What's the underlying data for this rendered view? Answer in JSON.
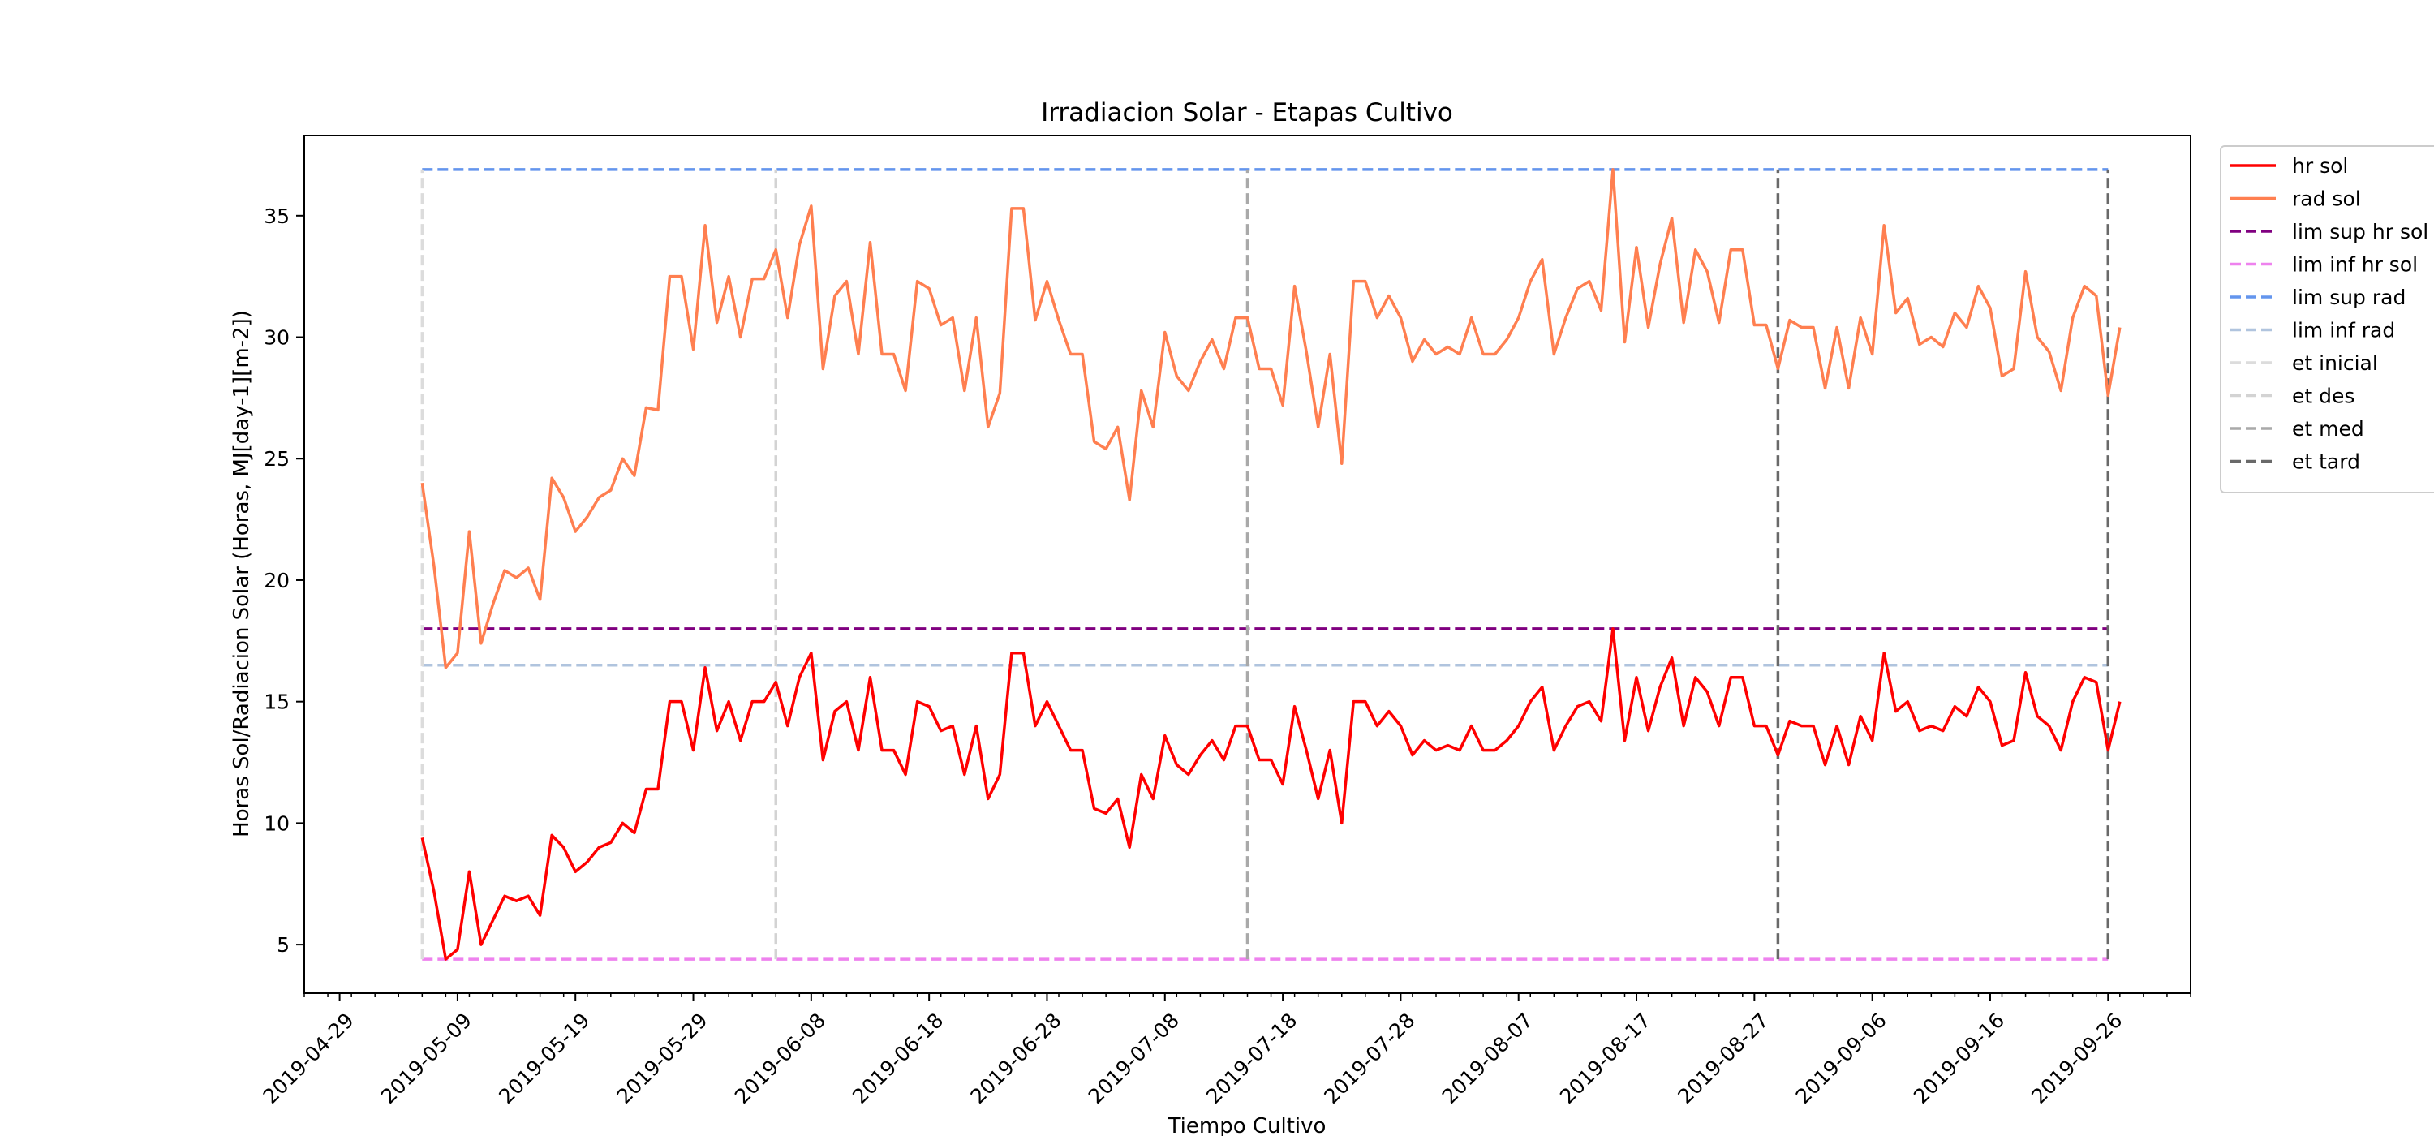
{
  "chart_data": {
    "type": "line",
    "title": "Irradiacion Solar - Etapas Cultivo",
    "xlabel": "Tiempo Cultivo",
    "ylabel": "Horas Sol/Radiacion Solar (Horas, MJ[day-1][m-2])",
    "x_axis_type": "date",
    "xlim": [
      "2019-04-26",
      "2019-10-03"
    ],
    "ylim": [
      3,
      38.3
    ],
    "x_ticks": [
      "2019-04-29",
      "2019-05-09",
      "2019-05-19",
      "2019-05-29",
      "2019-06-08",
      "2019-06-18",
      "2019-06-28",
      "2019-07-08",
      "2019-07-18",
      "2019-07-28",
      "2019-08-07",
      "2019-08-17",
      "2019-08-27",
      "2019-09-06",
      "2019-09-16",
      "2019-09-26"
    ],
    "y_ticks": [
      5,
      10,
      15,
      20,
      25,
      30,
      35
    ],
    "grid": false,
    "legend_position": "outside-right",
    "x_start": "2019-05-06",
    "series": [
      {
        "name": "hr sol",
        "color": "#ff0000",
        "values": [
          9.4,
          7.2,
          4.4,
          4.8,
          8.0,
          5.0,
          6.0,
          7.0,
          6.8,
          7.0,
          6.2,
          9.5,
          9.0,
          8.0,
          8.4,
          9.0,
          9.2,
          10.0,
          9.6,
          11.4,
          11.4,
          15.0,
          15.0,
          13.0,
          16.4,
          13.8,
          15.0,
          13.4,
          15.0,
          15.0,
          15.8,
          14.0,
          16.0,
          17.0,
          12.6,
          14.6,
          15.0,
          13.0,
          16.0,
          13.0,
          13.0,
          12.0,
          15.0,
          14.8,
          13.8,
          14.0,
          12.0,
          14.0,
          11.0,
          12.0,
          17.0,
          17.0,
          14.0,
          15.0,
          14.0,
          13.0,
          13.0,
          10.6,
          10.4,
          11.0,
          9.0,
          12.0,
          11.0,
          13.6,
          12.4,
          12.0,
          12.8,
          13.4,
          12.6,
          14.0,
          14.0,
          12.6,
          12.6,
          11.6,
          14.8,
          13.0,
          11.0,
          13.0,
          10.0,
          15.0,
          15.0,
          14.0,
          14.6,
          14.0,
          12.8,
          13.4,
          13.0,
          13.2,
          13.0,
          14.0,
          13.0,
          13.0,
          13.4,
          14.0,
          15.0,
          15.6,
          13.0,
          14.0,
          14.8,
          15.0,
          14.2,
          18.0,
          13.4,
          16.0,
          13.8,
          15.6,
          16.8,
          14.0,
          16.0,
          15.4,
          14.0,
          16.0,
          16.0,
          14.0,
          14.0,
          12.8,
          14.2,
          14.0,
          14.0,
          12.4,
          14.0,
          12.4,
          14.4,
          13.4,
          17.0,
          14.6,
          15.0,
          13.8,
          14.0,
          13.8,
          14.8,
          14.4,
          15.6,
          15.0,
          13.2,
          13.4,
          16.2,
          14.4,
          14.0,
          13.0,
          15.0,
          16.0,
          15.8,
          13.0,
          15.0
        ]
      },
      {
        "name": "rad sol",
        "color": "#ff7f50",
        "values": [
          24.0,
          20.6,
          16.4,
          17.0,
          22.0,
          17.4,
          19.0,
          20.4,
          20.1,
          20.5,
          19.2,
          24.2,
          23.4,
          22.0,
          22.6,
          23.4,
          23.7,
          25.0,
          24.3,
          27.1,
          27.0,
          32.5,
          32.5,
          29.5,
          34.6,
          30.6,
          32.5,
          30.0,
          32.4,
          32.4,
          33.6,
          30.8,
          33.8,
          35.4,
          28.7,
          31.7,
          32.3,
          29.3,
          33.9,
          29.3,
          29.3,
          27.8,
          32.3,
          32.0,
          30.5,
          30.8,
          27.8,
          30.8,
          26.3,
          27.7,
          35.3,
          35.3,
          30.7,
          32.3,
          30.7,
          29.3,
          29.3,
          25.7,
          25.4,
          26.3,
          23.3,
          27.8,
          26.3,
          30.2,
          28.4,
          27.8,
          29.0,
          29.9,
          28.7,
          30.8,
          30.8,
          28.7,
          28.7,
          27.2,
          32.1,
          29.4,
          26.3,
          29.3,
          24.8,
          32.3,
          32.3,
          30.8,
          31.7,
          30.8,
          29.0,
          29.9,
          29.3,
          29.6,
          29.3,
          30.8,
          29.3,
          29.3,
          29.9,
          30.8,
          32.3,
          33.2,
          29.3,
          30.8,
          32.0,
          32.3,
          31.1,
          36.9,
          29.8,
          33.7,
          30.4,
          33.0,
          34.9,
          30.6,
          33.6,
          32.7,
          30.6,
          33.6,
          33.6,
          30.5,
          30.5,
          28.7,
          30.7,
          30.4,
          30.4,
          27.9,
          30.4,
          27.9,
          30.8,
          29.3,
          34.6,
          31.0,
          31.6,
          29.7,
          30.0,
          29.6,
          31.0,
          30.4,
          32.1,
          31.2,
          28.4,
          28.7,
          32.7,
          30.0,
          29.4,
          27.8,
          30.8,
          32.1,
          31.7,
          27.6,
          30.4
        ]
      }
    ],
    "reference_lines": [
      {
        "name": "lim sup hr sol",
        "color": "#800080",
        "orientation": "horizontal",
        "value": 18.0,
        "from": "2019-05-06",
        "to": "2019-09-26"
      },
      {
        "name": "lim inf hr sol",
        "color": "#ee82ee",
        "orientation": "horizontal",
        "value": 4.4,
        "from": "2019-05-06",
        "to": "2019-09-26"
      },
      {
        "name": "lim sup rad",
        "color": "#6495ed",
        "orientation": "horizontal",
        "value": 36.9,
        "from": "2019-05-06",
        "to": "2019-09-26"
      },
      {
        "name": "lim inf rad",
        "color": "#b0c4de",
        "orientation": "horizontal",
        "value": 16.5,
        "from": "2019-05-06",
        "to": "2019-09-26"
      },
      {
        "name": "et inicial",
        "color": "#dcdcdc",
        "orientation": "vertical",
        "value": "2019-05-06",
        "from": 4.4,
        "to": 36.9
      },
      {
        "name": "et des",
        "color": "#d3d3d3",
        "orientation": "vertical",
        "value": "2019-06-05",
        "from": 4.4,
        "to": 36.9
      },
      {
        "name": "et med",
        "color": "#a9a9a9",
        "orientation": "vertical",
        "value": "2019-07-15",
        "from": 4.4,
        "to": 36.9
      },
      {
        "name": "et tard",
        "color": "#696969",
        "orientation": "vertical",
        "value": "2019-08-29",
        "from": 4.4,
        "to": 36.9
      },
      {
        "name": "",
        "color": "#696969",
        "orientation": "vertical",
        "value": "2019-09-26",
        "from": 4.4,
        "to": 36.9
      }
    ]
  }
}
